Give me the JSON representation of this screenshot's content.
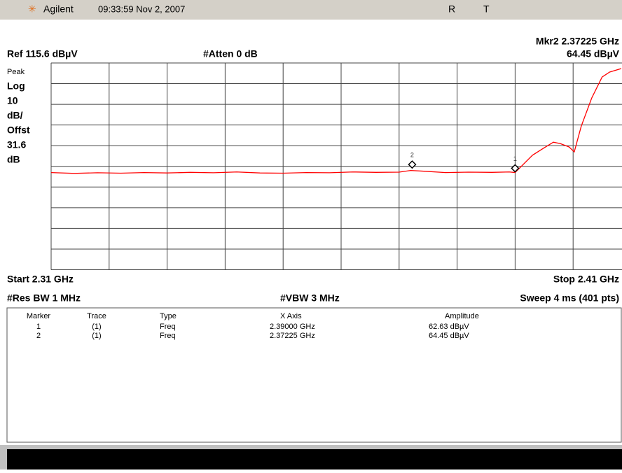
{
  "title_bar": {
    "brand": "Agilent",
    "timestamp": "09:33:59 Nov 2, 2007",
    "flag_r": "R",
    "flag_t": "T"
  },
  "header": {
    "marker_readout": "Mkr2 2.37225 GHz",
    "marker_amplitude": "64.45 dBµV",
    "ref": "Ref 115.6 dBµV",
    "atten": "#Atten 0 dB"
  },
  "side_labels": [
    "Peak",
    "Log",
    "10",
    "dB/",
    "Offst",
    "31.6",
    "dB"
  ],
  "footer": {
    "start": "Start 2.31 GHz",
    "stop": "Stop 2.41 GHz",
    "res_bw": "#Res BW 1 MHz",
    "vbw": "#VBW 3 MHz",
    "sweep": "Sweep 4 ms (401 pts)"
  },
  "scale": {
    "ref_level": 115.6,
    "db_per_div": 10,
    "start_ghz": 2.31,
    "stop_ghz": 2.41
  },
  "trace": {
    "color": "#ff0000",
    "x": [
      2.31,
      2.314,
      2.318,
      2.322,
      2.326,
      2.33,
      2.334,
      2.338,
      2.342,
      2.346,
      2.35,
      2.354,
      2.358,
      2.362,
      2.366,
      2.37,
      2.372,
      2.374,
      2.378,
      2.382,
      2.386,
      2.389,
      2.39,
      2.393,
      2.3948,
      2.3966,
      2.3978,
      2.3993,
      2.4002,
      2.4014,
      2.4032,
      2.405,
      2.4063,
      2.4083
    ],
    "values": [
      62.6,
      62.2,
      62.5,
      62.3,
      62.6,
      62.4,
      62.7,
      62.5,
      62.9,
      62.4,
      62.3,
      62.6,
      62.5,
      62.9,
      62.7,
      62.8,
      63.6,
      63.3,
      62.6,
      62.8,
      62.7,
      62.9,
      62.63,
      71.0,
      74.2,
      77.3,
      76.6,
      75.0,
      72.6,
      85.0,
      98.6,
      108.8,
      111.2,
      112.9
    ]
  },
  "table": {
    "headers": [
      "Marker",
      "Trace",
      "Type",
      "X Axis",
      "Amplitude"
    ],
    "rows": [
      [
        "1",
        "(1)",
        "Freq",
        "2.39000 GHz",
        "62.63 dBµV"
      ],
      [
        "2",
        "(1)",
        "Freq",
        "2.37225 GHz",
        "64.45 dBµV"
      ]
    ]
  },
  "markers": [
    {
      "label": "1",
      "freq": 2.39,
      "amp": 62.63
    },
    {
      "label": "2",
      "freq": 2.37225,
      "amp": 64.45
    }
  ]
}
